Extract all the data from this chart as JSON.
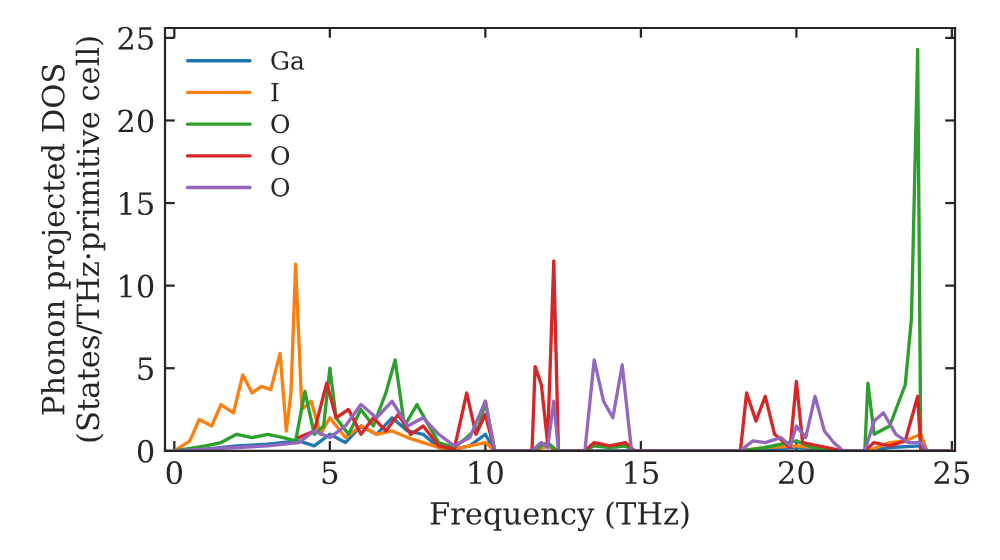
{
  "chart_data": {
    "type": "line",
    "xlabel": "Frequency (THz)",
    "ylabel": "Phonon projected DOS\n(States/THz·primitive cell)",
    "xlim": [
      -0.3,
      25.1
    ],
    "ylim": [
      0,
      25.6
    ],
    "xticks": [
      0,
      5,
      10,
      15,
      20,
      25
    ],
    "yticks": [
      0,
      5,
      10,
      15,
      20,
      25
    ],
    "grid": false,
    "legend": "top left",
    "line_style": "solid",
    "marker": "none",
    "series": [
      {
        "name": "Ga",
        "color": "#1f77b4",
        "x": [
          0,
          1,
          2,
          3,
          4,
          4.5,
          5,
          5.5,
          6,
          6.5,
          7,
          7.5,
          8,
          8.5,
          9,
          9.5,
          10,
          10.3,
          11.5,
          12,
          12.3,
          18.2,
          19,
          20,
          21.5,
          22.3,
          23,
          24,
          24.2,
          25
        ],
        "values": [
          0,
          0.1,
          0.3,
          0.4,
          0.6,
          0.3,
          1.0,
          0.5,
          1.5,
          1.0,
          2.0,
          1.2,
          1.0,
          0.2,
          0.1,
          0.3,
          1.0,
          0,
          0,
          0.3,
          0,
          0,
          0.1,
          0.2,
          0,
          0,
          0.2,
          0.3,
          0,
          0
        ]
      },
      {
        "name": "I",
        "color": "#ff7f0e",
        "x": [
          0,
          0.5,
          0.8,
          1.2,
          1.5,
          1.9,
          2.2,
          2.5,
          2.8,
          3.1,
          3.4,
          3.6,
          3.75,
          3.9,
          4.1,
          4.4,
          4.7,
          5.0,
          5.5,
          6.0,
          6.5,
          7.0,
          7.5,
          8.0,
          8.5,
          9.0,
          9.5,
          10.0,
          10.3,
          11.5,
          12.0,
          12.3,
          13.2,
          13.5,
          14.0,
          14.5,
          14.8,
          18.2,
          19,
          20,
          21.5,
          22.3,
          23,
          23.5,
          24,
          24.2,
          25
        ],
        "values": [
          0,
          0.6,
          1.9,
          1.5,
          2.8,
          2.3,
          4.6,
          3.5,
          3.9,
          3.7,
          5.9,
          1.2,
          3.5,
          11.3,
          2.5,
          3.0,
          1.0,
          2.0,
          0.8,
          1.5,
          1.0,
          1.2,
          0.8,
          0.5,
          0.2,
          0.1,
          0.3,
          0.5,
          0,
          0,
          0.3,
          0,
          0,
          0.4,
          0.2,
          0.3,
          0,
          0,
          0.2,
          0.3,
          0,
          0,
          0.5,
          0.6,
          1.0,
          0,
          0
        ]
      },
      {
        "name": "O",
        "color": "#2ca02c",
        "x": [
          0,
          1,
          1.5,
          2,
          2.5,
          3,
          3.5,
          3.9,
          4.2,
          4.5,
          4.8,
          5.0,
          5.2,
          5.6,
          6.0,
          6.4,
          6.8,
          7.1,
          7.4,
          7.8,
          8.1,
          8.5,
          9.0,
          9.4,
          9.8,
          10.0,
          10.3,
          11.5,
          12.0,
          12.3,
          13.2,
          13.5,
          14.0,
          14.5,
          14.8,
          18.2,
          19,
          20,
          20.5,
          21.5,
          22.2,
          22.3,
          22.5,
          23.0,
          23.5,
          23.7,
          23.9,
          24.0,
          24.2,
          25
        ],
        "values": [
          0,
          0.3,
          0.5,
          1.0,
          0.8,
          1.0,
          0.8,
          0.6,
          3.6,
          1.0,
          1.5,
          5.0,
          2.0,
          1.0,
          2.5,
          1.5,
          3.5,
          5.5,
          1.5,
          2.8,
          1.8,
          0.5,
          0.2,
          0.8,
          1.5,
          3.0,
          0,
          0,
          0.5,
          0,
          0,
          0.3,
          0.2,
          0.3,
          0,
          0,
          0.2,
          0.6,
          0.2,
          0,
          0,
          4.1,
          1.0,
          1.5,
          4.0,
          8.0,
          24.3,
          0,
          0,
          0
        ]
      },
      {
        "name": "O",
        "color": "#d62728",
        "x": [
          4.0,
          4.5,
          4.9,
          5.2,
          5.6,
          6.0,
          6.4,
          6.8,
          7.2,
          7.6,
          8.0,
          8.5,
          9.0,
          9.4,
          9.7,
          10.0,
          10.3,
          11.5,
          11.6,
          11.8,
          12.0,
          12.2,
          12.35,
          13.2,
          13.5,
          14.0,
          14.5,
          14.8,
          18.2,
          18.4,
          18.7,
          19.0,
          19.3,
          19.8,
          20.0,
          20.2,
          21.5,
          22.2,
          22.5,
          23.0,
          23.5,
          23.9,
          24.0,
          24.2,
          25
        ],
        "values": [
          0.8,
          1.2,
          4.1,
          2.0,
          2.5,
          1.0,
          2.0,
          1.2,
          2.2,
          1.0,
          1.5,
          0.3,
          0.1,
          3.5,
          1.0,
          2.2,
          0,
          0,
          5.1,
          4.0,
          0.5,
          11.5,
          0,
          0,
          0.5,
          0.3,
          0.5,
          0,
          0,
          3.5,
          1.8,
          3.3,
          1.0,
          0.2,
          4.2,
          0.5,
          0,
          0,
          0.5,
          0.3,
          0.6,
          3.3,
          0,
          0,
          0
        ]
      },
      {
        "name": "O",
        "color": "#9467bd",
        "x": [
          0,
          1,
          2,
          3,
          4,
          4.5,
          5,
          5.5,
          6,
          6.5,
          7,
          7.5,
          8,
          8.5,
          9,
          9.5,
          10.0,
          10.3,
          11.5,
          11.8,
          12.0,
          12.2,
          12.35,
          13.2,
          13.5,
          13.8,
          14.1,
          14.4,
          14.7,
          18.2,
          18.6,
          19.0,
          19.5,
          19.8,
          20.0,
          20.3,
          20.6,
          20.9,
          21.2,
          21.5,
          22.2,
          22.5,
          22.8,
          23.2,
          23.6,
          24.0,
          24.2,
          25
        ],
        "values": [
          0,
          0.1,
          0.2,
          0.3,
          0.5,
          1.2,
          0.8,
          1.5,
          2.8,
          2.0,
          3.0,
          1.5,
          2.0,
          1.0,
          0.3,
          0.8,
          3.0,
          0,
          0,
          0.5,
          0.2,
          3.0,
          0,
          0,
          5.5,
          3.0,
          2.0,
          5.2,
          0,
          0,
          0.6,
          0.5,
          0.8,
          0.3,
          1.5,
          0.8,
          3.3,
          1.2,
          0.5,
          0,
          0,
          1.8,
          2.3,
          1.0,
          0.5,
          0.5,
          0,
          0
        ]
      }
    ]
  }
}
